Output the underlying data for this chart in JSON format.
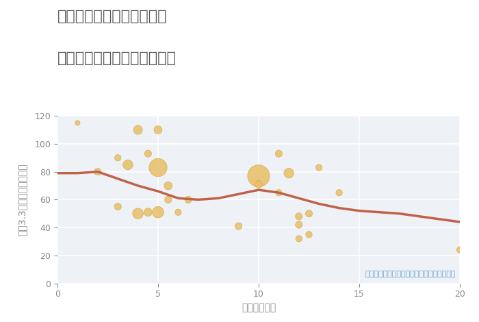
{
  "title_line1": "三重県桑名市長島町白鶏の",
  "title_line2": "駅距離別中古マンション価格",
  "xlabel": "駅距離（分）",
  "ylabel": "坪（3.3㎡）単価（万円）",
  "note": "円の大きさは、取引のあった物件面積を示す",
  "xlim": [
    0,
    20
  ],
  "ylim": [
    0,
    120
  ],
  "xticks": [
    0,
    5,
    10,
    15,
    20
  ],
  "yticks": [
    0,
    20,
    40,
    60,
    80,
    100,
    120
  ],
  "scatter_x": [
    1,
    2,
    3,
    3,
    3.5,
    4,
    4,
    4.5,
    4.5,
    5,
    5,
    5,
    5.5,
    5.5,
    6,
    6.5,
    9,
    10,
    10,
    11,
    11,
    11.5,
    12,
    12,
    12,
    12.5,
    12.5,
    13,
    14,
    20
  ],
  "scatter_y": [
    115,
    80,
    90,
    55,
    85,
    110,
    50,
    93,
    51,
    110,
    83,
    51,
    60,
    70,
    51,
    60,
    41,
    77,
    71,
    93,
    65,
    79,
    48,
    42,
    32,
    50,
    35,
    83,
    65,
    24
  ],
  "scatter_size": [
    15,
    30,
    25,
    30,
    60,
    50,
    70,
    30,
    40,
    40,
    200,
    80,
    30,
    40,
    25,
    30,
    30,
    300,
    35,
    30,
    25,
    60,
    30,
    30,
    25,
    30,
    25,
    25,
    25,
    25
  ],
  "scatter_color": "#E8C06A",
  "scatter_edgecolor": "#D4A840",
  "line_x": [
    0,
    1,
    2,
    3,
    4,
    5,
    6,
    7,
    8,
    9,
    10,
    11,
    12,
    13,
    14,
    15,
    16,
    17,
    18,
    19,
    20
  ],
  "line_y": [
    79,
    79,
    80,
    75,
    70,
    66,
    61,
    60,
    61,
    64,
    67,
    65,
    61,
    57,
    54,
    52,
    51,
    50,
    48,
    46,
    44
  ],
  "line_color": "#C0614A",
  "line_width": 2.5,
  "bg_color": "#FFFFFF",
  "plot_bg_color": "#EEF2F7",
  "grid_color": "#FFFFFF",
  "title_color": "#555555",
  "axis_color": "#888888",
  "note_color": "#5B9BD5",
  "title_fontsize": 16,
  "label_fontsize": 10,
  "tick_fontsize": 9,
  "note_fontsize": 8
}
